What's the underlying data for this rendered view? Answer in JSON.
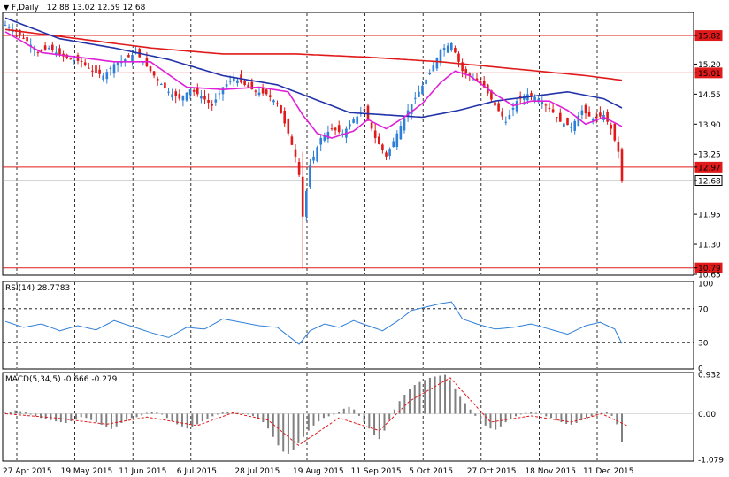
{
  "header": {
    "symbol": "F,Daily",
    "ohlc": "12.88 13.02 12.59 12.68",
    "menu_glyph": "▼"
  },
  "colors": {
    "bull": "#2e7fd8",
    "bear": "#e01a1a",
    "ma_fast": "#e020d8",
    "ma_mid": "#2233aa",
    "ma_slow": "#e01a1a",
    "hline": "#e01a1a",
    "rsi": "#2e7fd8",
    "hist": "#808080",
    "signal": "#e01a1a"
  },
  "chart_data": [
    {
      "type": "candlestick",
      "title": "F,Daily",
      "ylim": [
        10.65,
        16.3
      ],
      "y_ticks": [
        "15.82",
        "15.20",
        "15.01",
        "14.55",
        "13.90",
        "13.25",
        "12.97",
        "12.68",
        "11.95",
        "11.30",
        "10.79",
        "10.65"
      ],
      "x_tick_labels": [
        "27 Apr 2015",
        "19 May 2015",
        "11 Jun 2015",
        "6 Jul 2015",
        "28 Jul 2015",
        "19 Aug 2015",
        "11 Sep 2015",
        "5 Oct 2015",
        "27 Oct 2015",
        "18 Nov 2015",
        "11 Dec 2015"
      ],
      "horizontal_levels": [
        15.82,
        15.01,
        12.97,
        10.79
      ],
      "current_price": 12.68,
      "close_path": [
        [
          0,
          16.05
        ],
        [
          3,
          15.9
        ],
        [
          6,
          15.7
        ],
        [
          9,
          15.45
        ],
        [
          12,
          15.55
        ],
        [
          15,
          15.4
        ],
        [
          18,
          15.3
        ],
        [
          21,
          15.25
        ],
        [
          24,
          15.05
        ],
        [
          27,
          14.95
        ],
        [
          30,
          15.2
        ],
        [
          33,
          15.3
        ],
        [
          36,
          15.45
        ],
        [
          39,
          15.15
        ],
        [
          42,
          14.85
        ],
        [
          45,
          14.6
        ],
        [
          48,
          14.45
        ],
        [
          51,
          14.65
        ],
        [
          54,
          14.5
        ],
        [
          57,
          14.3
        ],
        [
          60,
          14.7
        ],
        [
          63,
          14.9
        ],
        [
          66,
          14.75
        ],
        [
          69,
          14.6
        ],
        [
          72,
          14.55
        ],
        [
          75,
          14.35
        ],
        [
          78,
          13.7
        ],
        [
          80,
          13.2
        ],
        [
          81,
          12.8
        ],
        [
          82,
          11.9
        ],
        [
          84,
          13.0
        ],
        [
          87,
          13.6
        ],
        [
          90,
          13.8
        ],
        [
          93,
          13.7
        ],
        [
          96,
          14.0
        ],
        [
          99,
          14.2
        ],
        [
          102,
          13.6
        ],
        [
          105,
          13.2
        ],
        [
          108,
          13.7
        ],
        [
          111,
          14.2
        ],
        [
          114,
          14.6
        ],
        [
          117,
          15.0
        ],
        [
          120,
          15.5
        ],
        [
          123,
          15.65
        ],
        [
          126,
          15.05
        ],
        [
          129,
          14.9
        ],
        [
          132,
          14.7
        ],
        [
          135,
          14.3
        ],
        [
          138,
          13.95
        ],
        [
          141,
          14.4
        ],
        [
          144,
          14.55
        ],
        [
          147,
          14.45
        ],
        [
          150,
          14.25
        ],
        [
          153,
          13.95
        ],
        [
          156,
          13.85
        ],
        [
          159,
          14.2
        ],
        [
          162,
          14.0
        ],
        [
          165,
          14.1
        ],
        [
          167,
          13.8
        ],
        [
          169,
          13.3
        ],
        [
          170,
          12.68
        ]
      ],
      "ma_fast": [
        [
          0,
          15.9
        ],
        [
          10,
          15.45
        ],
        [
          20,
          15.35
        ],
        [
          30,
          15.25
        ],
        [
          40,
          15.25
        ],
        [
          50,
          14.7
        ],
        [
          60,
          14.65
        ],
        [
          70,
          14.7
        ],
        [
          78,
          14.6
        ],
        [
          82,
          14.1
        ],
        [
          86,
          13.7
        ],
        [
          90,
          13.6
        ],
        [
          96,
          13.75
        ],
        [
          100,
          14.0
        ],
        [
          105,
          13.8
        ],
        [
          110,
          14.05
        ],
        [
          115,
          14.35
        ],
        [
          120,
          14.8
        ],
        [
          124,
          15.05
        ],
        [
          128,
          14.95
        ],
        [
          135,
          14.55
        ],
        [
          140,
          14.3
        ],
        [
          145,
          14.4
        ],
        [
          150,
          14.4
        ],
        [
          155,
          14.2
        ],
        [
          160,
          13.9
        ],
        [
          165,
          14.05
        ],
        [
          170,
          13.85
        ]
      ],
      "ma_mid": [
        [
          0,
          16.2
        ],
        [
          15,
          15.75
        ],
        [
          30,
          15.55
        ],
        [
          45,
          15.3
        ],
        [
          60,
          14.95
        ],
        [
          75,
          14.75
        ],
        [
          85,
          14.45
        ],
        [
          95,
          14.15
        ],
        [
          105,
          14.1
        ],
        [
          115,
          14.05
        ],
        [
          125,
          14.2
        ],
        [
          135,
          14.4
        ],
        [
          145,
          14.5
        ],
        [
          155,
          14.6
        ],
        [
          165,
          14.45
        ],
        [
          170,
          14.25
        ]
      ],
      "ma_slow": [
        [
          0,
          15.95
        ],
        [
          20,
          15.75
        ],
        [
          40,
          15.55
        ],
        [
          60,
          15.42
        ],
        [
          80,
          15.42
        ],
        [
          100,
          15.35
        ],
        [
          120,
          15.25
        ],
        [
          140,
          15.1
        ],
        [
          160,
          14.95
        ],
        [
          170,
          14.85
        ]
      ]
    },
    {
      "type": "line",
      "title": "RSI(14) 28.7783",
      "ylim": [
        0,
        100
      ],
      "y_ticks": [
        "100",
        "70",
        "30",
        "0"
      ],
      "levels": [
        70,
        30
      ],
      "values": [
        [
          0,
          55
        ],
        [
          5,
          48
        ],
        [
          10,
          52
        ],
        [
          15,
          44
        ],
        [
          20,
          50
        ],
        [
          25,
          45
        ],
        [
          30,
          56
        ],
        [
          35,
          49
        ],
        [
          40,
          42
        ],
        [
          45,
          36
        ],
        [
          50,
          48
        ],
        [
          55,
          46
        ],
        [
          60,
          58
        ],
        [
          65,
          54
        ],
        [
          70,
          50
        ],
        [
          75,
          48
        ],
        [
          78,
          38
        ],
        [
          81,
          28
        ],
        [
          84,
          44
        ],
        [
          88,
          52
        ],
        [
          92,
          48
        ],
        [
          96,
          56
        ],
        [
          100,
          50
        ],
        [
          104,
          44
        ],
        [
          108,
          55
        ],
        [
          112,
          68
        ],
        [
          116,
          72
        ],
        [
          120,
          76
        ],
        [
          123,
          78
        ],
        [
          126,
          58
        ],
        [
          130,
          52
        ],
        [
          135,
          46
        ],
        [
          140,
          48
        ],
        [
          145,
          52
        ],
        [
          150,
          46
        ],
        [
          155,
          40
        ],
        [
          160,
          50
        ],
        [
          164,
          54
        ],
        [
          168,
          46
        ],
        [
          170,
          29
        ]
      ]
    },
    {
      "type": "bar",
      "title": "MACD(5,34,5) -0.666 -0.279",
      "ylim": [
        -1.079,
        0.932
      ],
      "y_ticks": [
        "0.932",
        "0.00",
        "-1.079"
      ],
      "values": [
        0.02,
        0.05,
        0.08,
        0.06,
        0.03,
        -0.02,
        -0.06,
        -0.1,
        -0.12,
        -0.15,
        -0.18,
        -0.2,
        -0.22,
        -0.18,
        -0.12,
        -0.08,
        -0.1,
        -0.15,
        -0.2,
        -0.26,
        -0.32,
        -0.36,
        -0.3,
        -0.22,
        -0.15,
        -0.1,
        -0.08,
        -0.04,
        0.02,
        0.05,
        0.04,
        -0.02,
        -0.1,
        -0.18,
        -0.25,
        -0.3,
        -0.35,
        -0.32,
        -0.25,
        -0.18,
        -0.12,
        -0.06,
        -0.02,
        0.03,
        0.05,
        0.04,
        0.02,
        0.01,
        0.0,
        -0.05,
        -0.12,
        -0.2,
        -0.35,
        -0.55,
        -0.75,
        -0.9,
        -0.95,
        -0.85,
        -0.7,
        -0.55,
        -0.4,
        -0.28,
        -0.18,
        -0.1,
        -0.06,
        -0.02,
        0.05,
        0.12,
        0.16,
        0.1,
        -0.05,
        -0.2,
        -0.35,
        -0.5,
        -0.6,
        -0.4,
        -0.15,
        0.1,
        0.3,
        0.45,
        0.58,
        0.68,
        0.75,
        0.8,
        0.85,
        0.88,
        0.9,
        0.92,
        0.8,
        0.6,
        0.4,
        0.25,
        0.1,
        -0.05,
        -0.18,
        -0.28,
        -0.35,
        -0.38,
        -0.3,
        -0.2,
        -0.12,
        -0.06,
        -0.02,
        0.02,
        0.04,
        0.02,
        -0.02,
        -0.06,
        -0.1,
        -0.16,
        -0.2,
        -0.24,
        -0.26,
        -0.22,
        -0.16,
        -0.1,
        -0.06,
        -0.04,
        0.02,
        0.04,
        -0.05,
        -0.25,
        -0.67
      ],
      "signal": [
        [
          0,
          0.0
        ],
        [
          10,
          -0.1
        ],
        [
          20,
          -0.25
        ],
        [
          28,
          -0.08
        ],
        [
          38,
          -0.28
        ],
        [
          45,
          0.02
        ],
        [
          52,
          -0.15
        ],
        [
          58,
          -0.75
        ],
        [
          66,
          -0.1
        ],
        [
          74,
          -0.4
        ],
        [
          80,
          0.3
        ],
        [
          88,
          0.85
        ],
        [
          96,
          -0.2
        ],
        [
          104,
          -0.05
        ],
        [
          112,
          -0.2
        ],
        [
          118,
          0.0
        ],
        [
          123,
          -0.28
        ]
      ]
    }
  ]
}
